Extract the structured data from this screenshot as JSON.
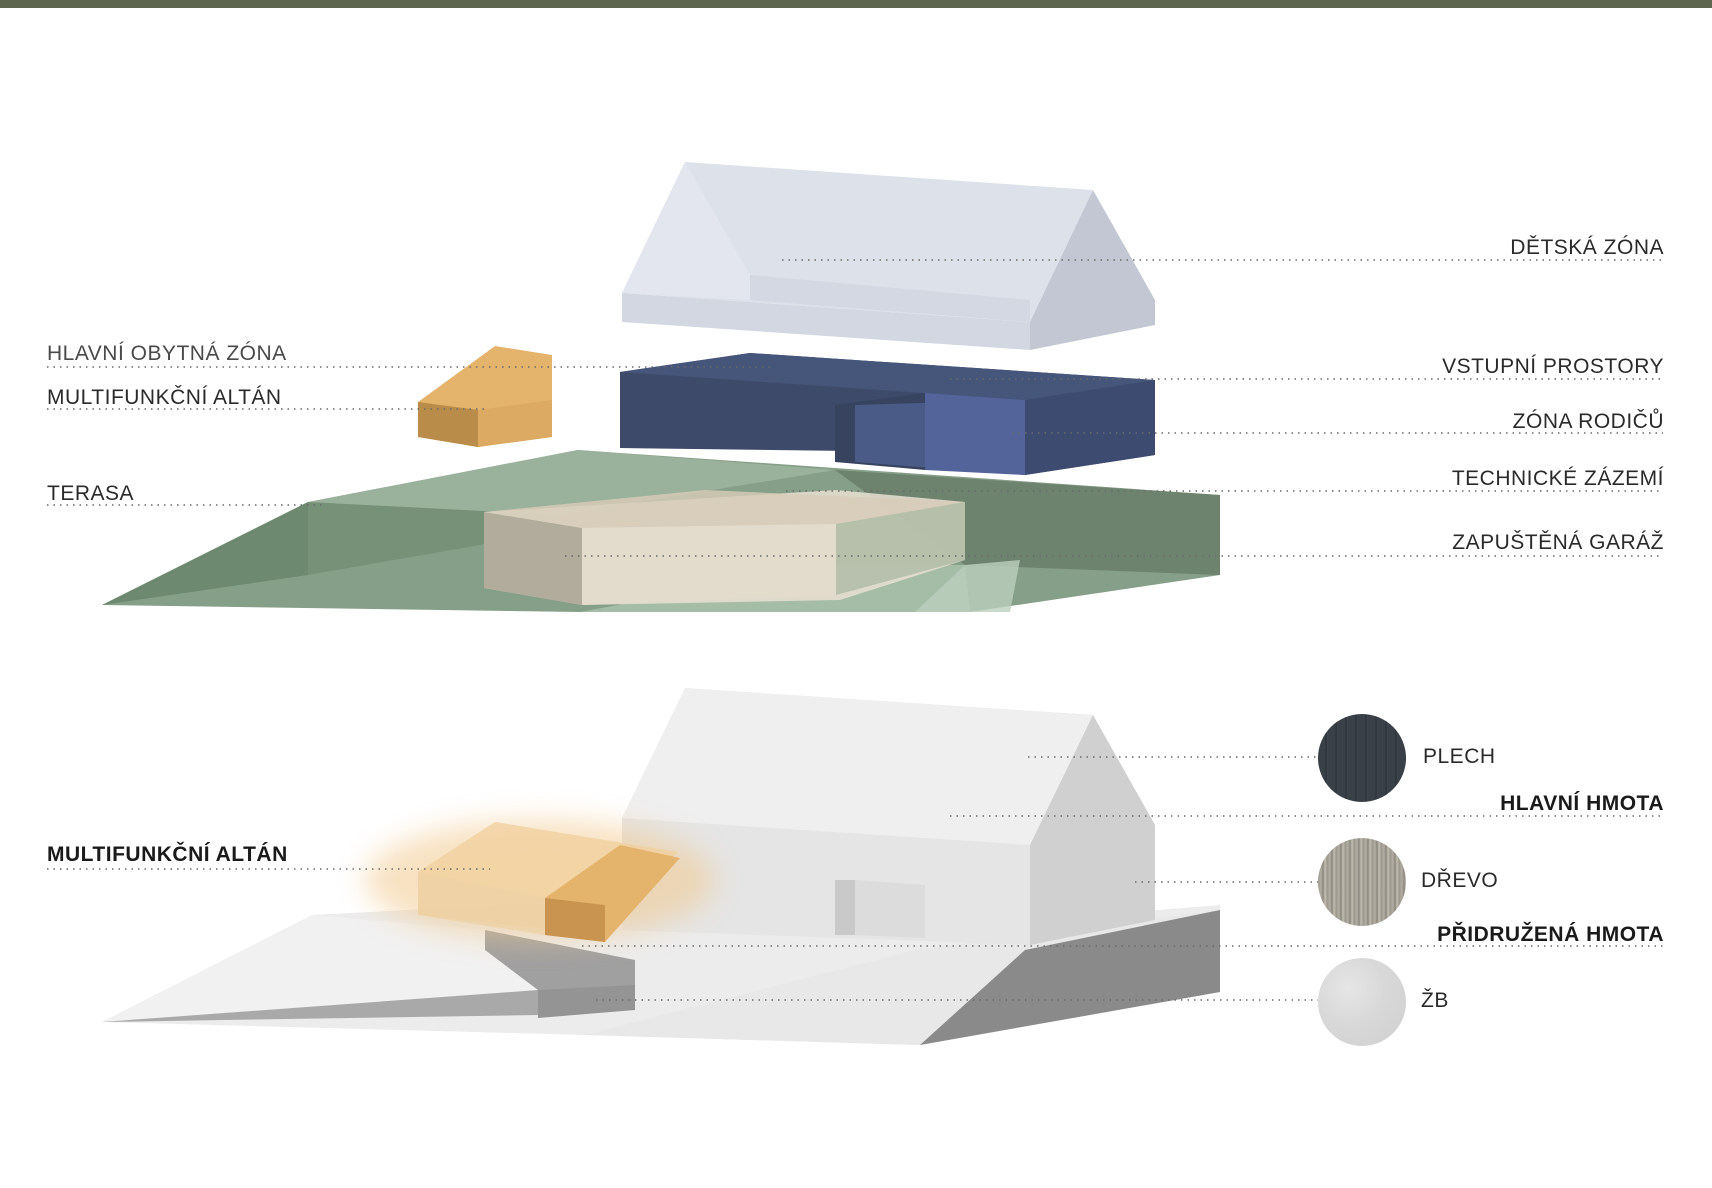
{
  "labels": {
    "left": {
      "hlavni_obytna_zona": "HLAVNÍ OBYTNÁ ZÓNA",
      "multifunkcni_altan": "MULTIFUNKČNÍ ALTÁN",
      "terasa": "TERASA",
      "multifunkcni_altan_bottom": "MULTIFUNKČNÍ ALTÁN"
    },
    "right": {
      "detska_zona": "DĚTSKÁ ZÓNA",
      "vstupni_prostory": "VSTUPNÍ PROSTORY",
      "zona_rodicu": "ZÓNA RODIČŮ",
      "technicke_zazemi": "TECHNICKÉ ZÁZEMÍ",
      "zapustena_garaz": "ZAPUŠTĚNÁ GARÁŽ"
    },
    "materials": {
      "plech": "PLECH",
      "hlavni_hmota": "HLAVNÍ HMOTA",
      "drevo": "DŘEVO",
      "pridruzena_hmota": "PŘIDRUŽENÁ HMOTA",
      "zb": "ŽB"
    }
  },
  "colors": {
    "roof_light": "#dde1ea",
    "roof_side": "#c3c7d2",
    "blue_dark": "#3f4c6e",
    "blue_mid": "#4e5f8f",
    "terrain_green": "#7f9a82",
    "garage_beige": "#e6ddcf",
    "altan_orange": "#e5b46c",
    "plech": "#3a4048",
    "drevo": "#a8a49a",
    "zb": "#d9d9d9"
  },
  "icons": [
    "plech-swatch",
    "drevo-swatch",
    "zb-swatch"
  ]
}
